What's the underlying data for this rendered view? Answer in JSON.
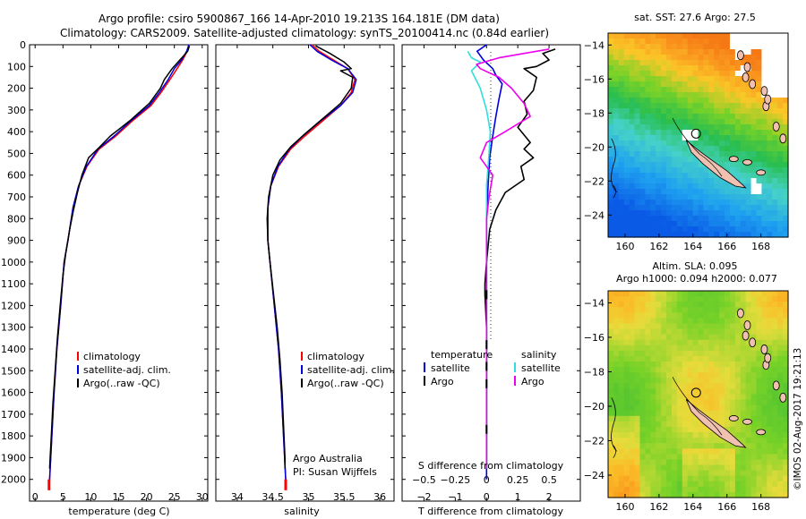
{
  "title": {
    "line1": "Argo profile: csiro 5900867_166 14-Apr-2010 19.213S 164.181E (DM data)",
    "line2": "Climatology: CARS2009. Satellite-adjusted climatology: synTS_20100414.nc (0.84d earlier)"
  },
  "colors": {
    "clim": "#ff0000",
    "sat": "#0000dd",
    "argo": "#000000",
    "sal_sat": "#33dddd",
    "sal_argo": "#ee00ee"
  },
  "chart_data": [
    {
      "type": "line",
      "id": "temperature",
      "xlabel": "temperature (deg C)",
      "ylabel": "",
      "xlim": [
        -1,
        31
      ],
      "ylim": [
        2100,
        0
      ],
      "xticks": [
        0,
        5,
        10,
        15,
        20,
        25,
        30
      ],
      "yticks": [
        0,
        100,
        200,
        300,
        400,
        500,
        600,
        700,
        800,
        900,
        1000,
        1100,
        1200,
        1300,
        1400,
        1500,
        1600,
        1700,
        1800,
        1900,
        2000
      ],
      "legend": [
        "climatology",
        "satellite-adj. clim.",
        "Argo(..raw -QC)"
      ],
      "series": [
        {
          "name": "climatology",
          "color_key": "clim",
          "points": [
            [
              27.6,
              0
            ],
            [
              27.3,
              30
            ],
            [
              26.5,
              70
            ],
            [
              25.5,
              110
            ],
            [
              24.2,
              160
            ],
            [
              22.6,
              220
            ],
            [
              20.8,
              280
            ],
            [
              17.5,
              350
            ],
            [
              14.5,
              420
            ],
            [
              11.5,
              480
            ],
            [
              9.3,
              560
            ],
            [
              7.8,
              650
            ],
            [
              6.8,
              750
            ],
            [
              5.9,
              900
            ],
            [
              5.2,
              1000
            ],
            [
              4.6,
              1200
            ],
            [
              3.9,
              1400
            ],
            [
              3.4,
              1600
            ],
            [
              3.0,
              1800
            ],
            [
              2.6,
              2000
            ],
            [
              2.5,
              2030
            ]
          ]
        },
        {
          "name": "satellite-adj. clim.",
          "color_key": "sat",
          "points": [
            [
              27.6,
              0
            ],
            [
              27.2,
              30
            ],
            [
              26.3,
              70
            ],
            [
              25.0,
              110
            ],
            [
              23.9,
              160
            ],
            [
              22.3,
              220
            ],
            [
              20.5,
              280
            ],
            [
              17.2,
              350
            ],
            [
              14.2,
              420
            ],
            [
              11.3,
              480
            ],
            [
              9.2,
              560
            ],
            [
              7.8,
              650
            ],
            [
              6.8,
              750
            ],
            [
              5.9,
              900
            ],
            [
              5.2,
              1000
            ],
            [
              4.6,
              1200
            ],
            [
              3.9,
              1400
            ],
            [
              3.4,
              1600
            ],
            [
              3.0,
              1800
            ],
            [
              2.6,
              2000
            ],
            [
              2.5,
              2030
            ]
          ]
        },
        {
          "name": "Argo(..raw -QC)",
          "color_key": "argo",
          "points": [
            [
              27.7,
              5
            ],
            [
              27.4,
              30
            ],
            [
              26.0,
              70
            ],
            [
              24.6,
              110
            ],
            [
              23.2,
              160
            ],
            [
              22.5,
              200
            ],
            [
              20.5,
              270
            ],
            [
              17.0,
              350
            ],
            [
              13.5,
              420
            ],
            [
              11.6,
              470
            ],
            [
              9.6,
              520
            ],
            [
              8.4,
              600
            ],
            [
              7.6,
              680
            ],
            [
              6.9,
              760
            ],
            [
              6.2,
              850
            ],
            [
              5.5,
              960
            ],
            [
              5.0,
              1060
            ],
            [
              4.5,
              1200
            ],
            [
              4.0,
              1350
            ],
            [
              3.6,
              1500
            ],
            [
              3.2,
              1650
            ],
            [
              2.9,
              1800
            ],
            [
              2.7,
              1900
            ],
            [
              2.6,
              1950
            ]
          ]
        }
      ]
    },
    {
      "type": "line",
      "id": "salinity",
      "xlabel": "salinity",
      "xlim": [
        33.7,
        36.2
      ],
      "ylim": [
        2100,
        0
      ],
      "xticks": [
        34,
        34.5,
        35,
        35.5,
        36
      ],
      "xticklabels": [
        "34",
        "34.5",
        "35",
        "35.5",
        "36"
      ],
      "legend": [
        "climatology",
        "satellite-adj. clim.",
        "Argo(..raw -QC)"
      ],
      "annotation": [
        "Argo Australia",
        "PI: Susan Wijffels"
      ],
      "series": [
        {
          "name": "climatology",
          "color_key": "clim",
          "points": [
            [
              35.05,
              0
            ],
            [
              35.15,
              30
            ],
            [
              35.35,
              70
            ],
            [
              35.55,
              110
            ],
            [
              35.65,
              160
            ],
            [
              35.6,
              220
            ],
            [
              35.45,
              280
            ],
            [
              35.2,
              350
            ],
            [
              34.95,
              420
            ],
            [
              34.75,
              480
            ],
            [
              34.58,
              560
            ],
            [
              34.47,
              650
            ],
            [
              34.43,
              750
            ],
            [
              34.43,
              900
            ],
            [
              34.46,
              1000
            ],
            [
              34.52,
              1200
            ],
            [
              34.58,
              1400
            ],
            [
              34.62,
              1600
            ],
            [
              34.65,
              1800
            ],
            [
              34.68,
              2000
            ],
            [
              34.68,
              2030
            ]
          ]
        },
        {
          "name": "satellite-adj. clim.",
          "color_key": "sat",
          "points": [
            [
              35.02,
              0
            ],
            [
              35.12,
              30
            ],
            [
              35.32,
              70
            ],
            [
              35.55,
              110
            ],
            [
              35.67,
              160
            ],
            [
              35.62,
              220
            ],
            [
              35.45,
              280
            ],
            [
              35.17,
              350
            ],
            [
              34.92,
              420
            ],
            [
              34.73,
              480
            ],
            [
              34.57,
              560
            ],
            [
              34.47,
              650
            ],
            [
              34.43,
              750
            ],
            [
              34.43,
              900
            ],
            [
              34.46,
              1000
            ],
            [
              34.52,
              1200
            ],
            [
              34.58,
              1400
            ],
            [
              34.62,
              1600
            ],
            [
              34.65,
              1800
            ],
            [
              34.68,
              2000
            ],
            [
              34.68,
              2030
            ]
          ]
        },
        {
          "name": "Argo(..raw -QC)",
          "color_key": "argo",
          "points": [
            [
              35.1,
              5
            ],
            [
              35.3,
              40
            ],
            [
              35.5,
              80
            ],
            [
              35.6,
              110
            ],
            [
              35.45,
              120
            ],
            [
              35.62,
              150
            ],
            [
              35.6,
              200
            ],
            [
              35.45,
              270
            ],
            [
              35.2,
              340
            ],
            [
              34.95,
              410
            ],
            [
              34.75,
              470
            ],
            [
              34.6,
              530
            ],
            [
              34.5,
              600
            ],
            [
              34.44,
              700
            ],
            [
              34.42,
              800
            ],
            [
              34.43,
              900
            ],
            [
              34.46,
              1000
            ],
            [
              34.51,
              1150
            ],
            [
              34.56,
              1300
            ],
            [
              34.6,
              1450
            ],
            [
              34.63,
              1600
            ],
            [
              34.65,
              1750
            ],
            [
              34.67,
              1900
            ],
            [
              34.67,
              1950
            ]
          ]
        }
      ]
    },
    {
      "type": "line",
      "id": "difference",
      "xlabel_bottom": "T difference from climatology",
      "xlabel_top": "S difference from climatology",
      "xlim": [
        -2.7,
        3.0
      ],
      "ylim": [
        2100,
        0
      ],
      "xticks_T": [
        -2,
        -1,
        0,
        1,
        2
      ],
      "xticks_S": [
        -0.5,
        -0.25,
        0,
        0.25,
        0.5
      ],
      "xticklabels_S": [
        "−0.5",
        "−0.25",
        "0",
        "0.25",
        "0.5"
      ],
      "xticklabels_T": [
        "−2",
        "−1",
        "0",
        "1",
        "2"
      ],
      "legend_temperature": {
        "title": "temperature",
        "items": [
          "satellite",
          "Argo"
        ]
      },
      "legend_salinity": {
        "title": "salinity",
        "items": [
          "satellite",
          "Argo"
        ]
      },
      "series": [
        {
          "name": "T satellite",
          "color_key": "sat",
          "points": [
            [
              0.0,
              0
            ],
            [
              -0.3,
              30
            ],
            [
              -0.1,
              70
            ],
            [
              0.2,
              110
            ],
            [
              0.3,
              140
            ],
            [
              0.5,
              180
            ],
            [
              0.4,
              250
            ],
            [
              0.3,
              330
            ],
            [
              0.2,
              420
            ],
            [
              0.1,
              520
            ],
            [
              0.05,
              650
            ],
            [
              0.0,
              800
            ],
            [
              0.0,
              2000
            ]
          ]
        },
        {
          "name": "T Argo",
          "color_key": "argo",
          "points": [
            [
              2.2,
              20
            ],
            [
              1.8,
              40
            ],
            [
              2.0,
              70
            ],
            [
              1.6,
              100
            ],
            [
              1.2,
              110
            ],
            [
              1.6,
              150
            ],
            [
              1.5,
              210
            ],
            [
              1.2,
              260
            ],
            [
              1.3,
              320
            ],
            [
              1.0,
              380
            ],
            [
              1.4,
              450
            ],
            [
              1.2,
              480
            ],
            [
              1.5,
              520
            ],
            [
              1.1,
              560
            ],
            [
              1.2,
              620
            ],
            [
              0.6,
              680
            ],
            [
              0.3,
              760
            ],
            [
              0.1,
              850
            ],
            [
              0.0,
              1000
            ],
            [
              -0.05,
              1100
            ],
            [
              -0.05,
              1150
            ],
            [
              0.0,
              1300
            ],
            [
              0.0,
              1950
            ]
          ]
        },
        {
          "name": "S satellite",
          "color_key": "sal_sat",
          "points": [
            [
              -0.15,
              30
            ],
            [
              -0.12,
              60
            ],
            [
              -0.05,
              80
            ],
            [
              -0.12,
              120
            ],
            [
              -0.05,
              200
            ],
            [
              0.0,
              300
            ],
            [
              0.03,
              400
            ],
            [
              0.02,
              500
            ],
            [
              0.0,
              650
            ],
            [
              0.0,
              800
            ],
            [
              0.0,
              1950
            ]
          ]
        },
        {
          "name": "S Argo",
          "color_key": "sal_argo",
          "points": [
            [
              0.5,
              20
            ],
            [
              0.3,
              40
            ],
            [
              0.1,
              60
            ],
            [
              -0.08,
              90
            ],
            [
              -0.05,
              110
            ],
            [
              0.1,
              150
            ],
            [
              0.2,
              200
            ],
            [
              0.3,
              270
            ],
            [
              0.35,
              330
            ],
            [
              0.15,
              400
            ],
            [
              0.0,
              450
            ],
            [
              -0.05,
              520
            ],
            [
              0.05,
              600
            ],
            [
              0.02,
              700
            ],
            [
              0.0,
              800
            ],
            [
              0.0,
              1950
            ]
          ]
        }
      ]
    },
    {
      "type": "heatmap",
      "id": "sst-map",
      "title": "sat. SST: 27.6 Argo: 27.5",
      "xlim": [
        159,
        169.6
      ],
      "ylim": [
        -25.3,
        -13.3
      ],
      "xticks": [
        160,
        162,
        164,
        166,
        168
      ],
      "yticks": [
        -14,
        -16,
        -18,
        -20,
        -22,
        -24
      ]
    },
    {
      "type": "heatmap",
      "id": "sla-map",
      "title_line1": "Altim. SLA: 0.095",
      "title_line2": "Argo h1000: 0.094 h2000: 0.077",
      "xlim": [
        159,
        169.6
      ],
      "ylim": [
        -25.3,
        -13.3
      ],
      "xticks": [
        160,
        162,
        164,
        166,
        168
      ],
      "yticks": [
        -14,
        -16,
        -18,
        -20,
        -22,
        -24
      ]
    }
  ],
  "footer": "©IMOS 02-Aug-2017 19:21:13"
}
